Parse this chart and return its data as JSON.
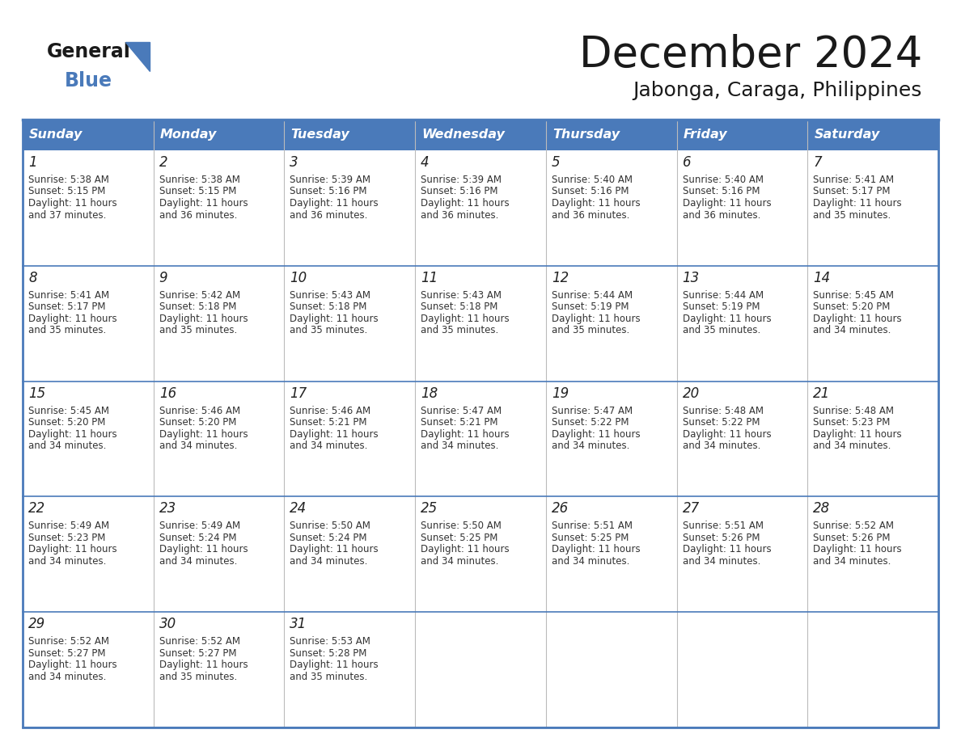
{
  "title": "December 2024",
  "subtitle": "Jabonga, Caraga, Philippines",
  "header_color": "#4a7aba",
  "header_text_color": "#FFFFFF",
  "cell_bg_color": "#FFFFFF",
  "border_color": "#4a7aba",
  "row_separator_color": "#4a7aba",
  "col_separator_color": "#cccccc",
  "days_of_week": [
    "Sunday",
    "Monday",
    "Tuesday",
    "Wednesday",
    "Thursday",
    "Friday",
    "Saturday"
  ],
  "calendar_data": [
    [
      {
        "day": "1",
        "sunrise": "5:38 AM",
        "sunset": "5:15 PM",
        "daylight_h": "11 hours",
        "daylight_m": "37 minutes"
      },
      {
        "day": "2",
        "sunrise": "5:38 AM",
        "sunset": "5:15 PM",
        "daylight_h": "11 hours",
        "daylight_m": "36 minutes"
      },
      {
        "day": "3",
        "sunrise": "5:39 AM",
        "sunset": "5:16 PM",
        "daylight_h": "11 hours",
        "daylight_m": "36 minutes"
      },
      {
        "day": "4",
        "sunrise": "5:39 AM",
        "sunset": "5:16 PM",
        "daylight_h": "11 hours",
        "daylight_m": "36 minutes"
      },
      {
        "day": "5",
        "sunrise": "5:40 AM",
        "sunset": "5:16 PM",
        "daylight_h": "11 hours",
        "daylight_m": "36 minutes"
      },
      {
        "day": "6",
        "sunrise": "5:40 AM",
        "sunset": "5:16 PM",
        "daylight_h": "11 hours",
        "daylight_m": "36 minutes"
      },
      {
        "day": "7",
        "sunrise": "5:41 AM",
        "sunset": "5:17 PM",
        "daylight_h": "11 hours",
        "daylight_m": "35 minutes"
      }
    ],
    [
      {
        "day": "8",
        "sunrise": "5:41 AM",
        "sunset": "5:17 PM",
        "daylight_h": "11 hours",
        "daylight_m": "35 minutes"
      },
      {
        "day": "9",
        "sunrise": "5:42 AM",
        "sunset": "5:18 PM",
        "daylight_h": "11 hours",
        "daylight_m": "35 minutes"
      },
      {
        "day": "10",
        "sunrise": "5:43 AM",
        "sunset": "5:18 PM",
        "daylight_h": "11 hours",
        "daylight_m": "35 minutes"
      },
      {
        "day": "11",
        "sunrise": "5:43 AM",
        "sunset": "5:18 PM",
        "daylight_h": "11 hours",
        "daylight_m": "35 minutes"
      },
      {
        "day": "12",
        "sunrise": "5:44 AM",
        "sunset": "5:19 PM",
        "daylight_h": "11 hours",
        "daylight_m": "35 minutes"
      },
      {
        "day": "13",
        "sunrise": "5:44 AM",
        "sunset": "5:19 PM",
        "daylight_h": "11 hours",
        "daylight_m": "35 minutes"
      },
      {
        "day": "14",
        "sunrise": "5:45 AM",
        "sunset": "5:20 PM",
        "daylight_h": "11 hours",
        "daylight_m": "34 minutes"
      }
    ],
    [
      {
        "day": "15",
        "sunrise": "5:45 AM",
        "sunset": "5:20 PM",
        "daylight_h": "11 hours",
        "daylight_m": "34 minutes"
      },
      {
        "day": "16",
        "sunrise": "5:46 AM",
        "sunset": "5:20 PM",
        "daylight_h": "11 hours",
        "daylight_m": "34 minutes"
      },
      {
        "day": "17",
        "sunrise": "5:46 AM",
        "sunset": "5:21 PM",
        "daylight_h": "11 hours",
        "daylight_m": "34 minutes"
      },
      {
        "day": "18",
        "sunrise": "5:47 AM",
        "sunset": "5:21 PM",
        "daylight_h": "11 hours",
        "daylight_m": "34 minutes"
      },
      {
        "day": "19",
        "sunrise": "5:47 AM",
        "sunset": "5:22 PM",
        "daylight_h": "11 hours",
        "daylight_m": "34 minutes"
      },
      {
        "day": "20",
        "sunrise": "5:48 AM",
        "sunset": "5:22 PM",
        "daylight_h": "11 hours",
        "daylight_m": "34 minutes"
      },
      {
        "day": "21",
        "sunrise": "5:48 AM",
        "sunset": "5:23 PM",
        "daylight_h": "11 hours",
        "daylight_m": "34 minutes"
      }
    ],
    [
      {
        "day": "22",
        "sunrise": "5:49 AM",
        "sunset": "5:23 PM",
        "daylight_h": "11 hours",
        "daylight_m": "34 minutes"
      },
      {
        "day": "23",
        "sunrise": "5:49 AM",
        "sunset": "5:24 PM",
        "daylight_h": "11 hours",
        "daylight_m": "34 minutes"
      },
      {
        "day": "24",
        "sunrise": "5:50 AM",
        "sunset": "5:24 PM",
        "daylight_h": "11 hours",
        "daylight_m": "34 minutes"
      },
      {
        "day": "25",
        "sunrise": "5:50 AM",
        "sunset": "5:25 PM",
        "daylight_h": "11 hours",
        "daylight_m": "34 minutes"
      },
      {
        "day": "26",
        "sunrise": "5:51 AM",
        "sunset": "5:25 PM",
        "daylight_h": "11 hours",
        "daylight_m": "34 minutes"
      },
      {
        "day": "27",
        "sunrise": "5:51 AM",
        "sunset": "5:26 PM",
        "daylight_h": "11 hours",
        "daylight_m": "34 minutes"
      },
      {
        "day": "28",
        "sunrise": "5:52 AM",
        "sunset": "5:26 PM",
        "daylight_h": "11 hours",
        "daylight_m": "34 minutes"
      }
    ],
    [
      {
        "day": "29",
        "sunrise": "5:52 AM",
        "sunset": "5:27 PM",
        "daylight_h": "11 hours",
        "daylight_m": "34 minutes"
      },
      {
        "day": "30",
        "sunrise": "5:52 AM",
        "sunset": "5:27 PM",
        "daylight_h": "11 hours",
        "daylight_m": "35 minutes"
      },
      {
        "day": "31",
        "sunrise": "5:53 AM",
        "sunset": "5:28 PM",
        "daylight_h": "11 hours",
        "daylight_m": "35 minutes"
      },
      null,
      null,
      null,
      null
    ]
  ]
}
